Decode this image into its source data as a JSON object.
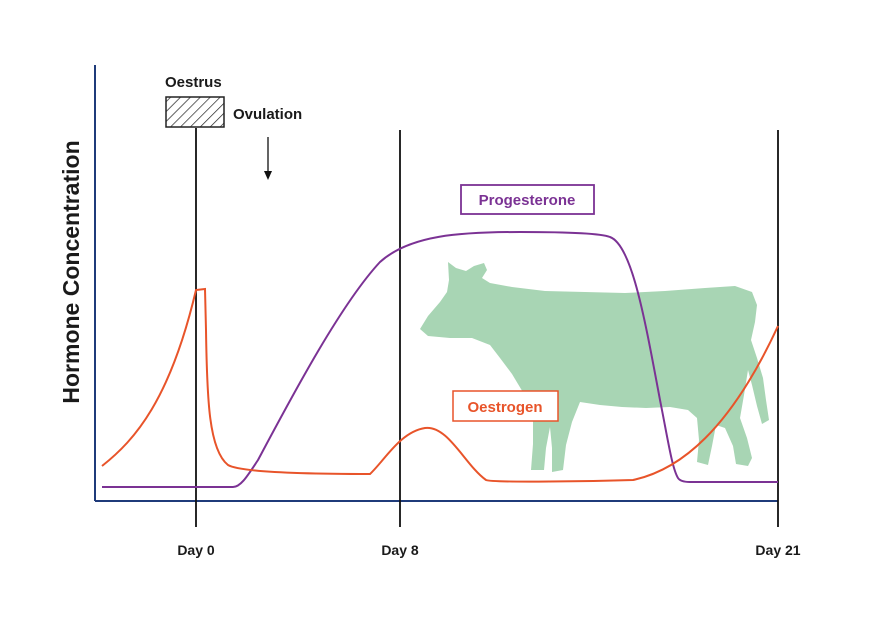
{
  "ylabel": "Hormone Concentration",
  "x_ticks": [
    "Day 0",
    "Day 8",
    "Day 21"
  ],
  "oestrus_label": "Oestrus",
  "ovulation_label": "Ovulation",
  "series": [
    {
      "name": "Progesterone",
      "color": "#7B3294"
    },
    {
      "name": "Oestrogen",
      "color": "#E8542A"
    }
  ],
  "colors": {
    "axis": "#1F3B7A",
    "cow": "#A8D5B4",
    "marker_lines": "#111111"
  },
  "icons": [
    "cow-silhouette",
    "hatched-box",
    "down-arrow"
  ]
}
